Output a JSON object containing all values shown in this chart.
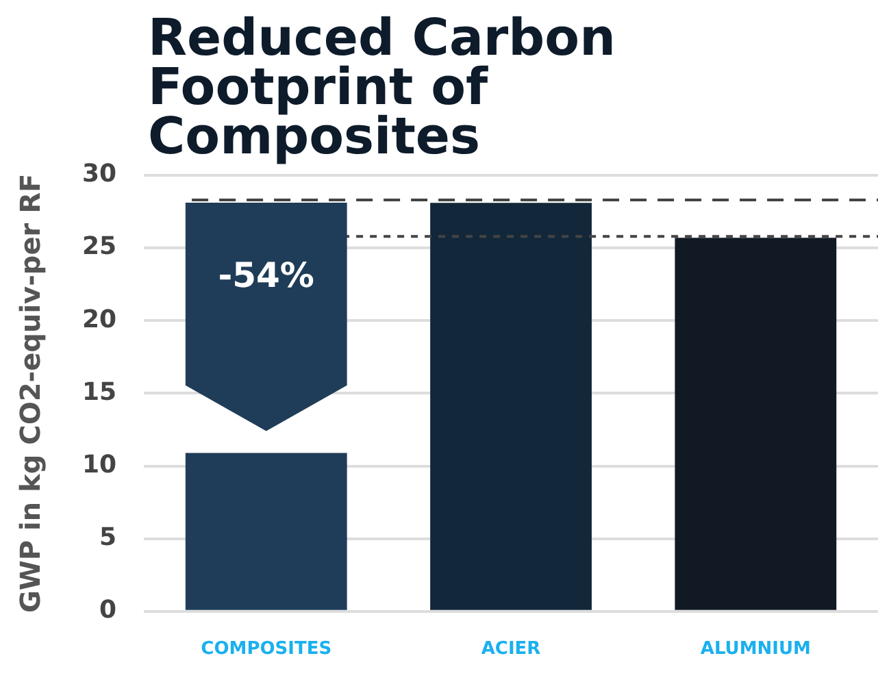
{
  "chart_data": {
    "type": "bar",
    "title": "Reduced Carbon Footprint of Composites",
    "ylabel": "GWP in kg CO2-equiv-per RF",
    "categories": [
      "COMPOSITES",
      "ACIER",
      "ALUMNIUM"
    ],
    "values": [
      10.9,
      28.1,
      25.7
    ],
    "colors": [
      "#1f3d58",
      "#13273a",
      "#111a24"
    ],
    "ylim": [
      0,
      30
    ],
    "yticks": [
      0,
      5,
      10,
      15,
      20,
      25,
      30
    ],
    "grid": "y",
    "legend": false,
    "ref_lines": [
      {
        "axis": "y",
        "value": 28.3,
        "line_style": "dashed",
        "color": "#444444"
      },
      {
        "axis": "y",
        "value": 25.8,
        "line_style": "dotted",
        "color": "#444444"
      }
    ],
    "annotations": [
      "-54%"
    ]
  }
}
